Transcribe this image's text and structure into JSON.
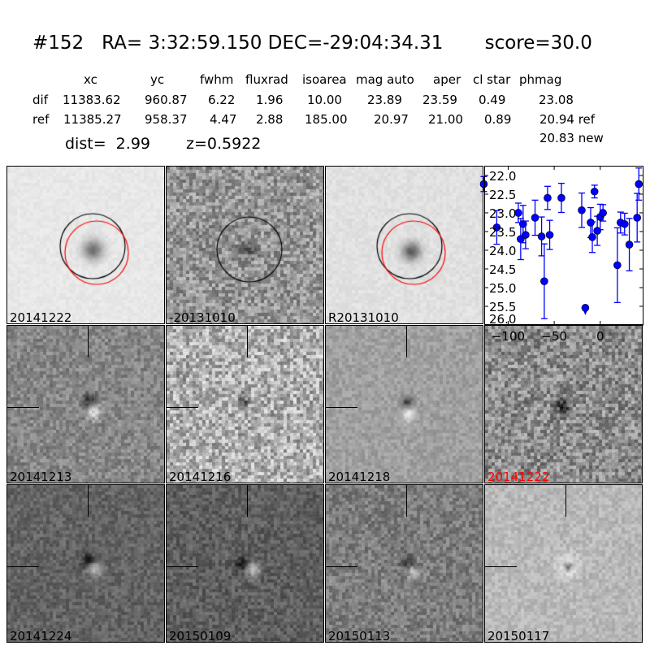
{
  "header": {
    "title": "#152   RA= 3:32:59.150 DEC=-29:04:34.31       score=30.0",
    "columns": [
      "xc",
      "yc",
      "fwhm",
      "fluxrad",
      "isoarea",
      "mag auto",
      "aper",
      "cl star",
      "phmag"
    ],
    "rows": [
      {
        "label": "dif",
        "values": [
          "11383.62",
          "960.87",
          "6.22",
          "1.96",
          "10.00",
          "23.89",
          "23.59",
          "0.49",
          "23.08"
        ]
      },
      {
        "label": "ref",
        "values": [
          "11385.27",
          "958.37",
          "4.47",
          "2.88",
          "185.00",
          "20.97",
          "21.00",
          "0.89",
          "20.94 ref"
        ]
      }
    ],
    "extra_phmag": "20.83 new",
    "dist": "dist=  2.99",
    "z": "z=0.5922"
  },
  "stamps": [
    {
      "label": "20141222",
      "label_color": "#000000"
    },
    {
      "label": "-20131010",
      "label_color": "#000000"
    },
    {
      "label": "R20131010",
      "label_color": "#000000"
    },
    {
      "label": "20141213",
      "label_color": "#000000"
    },
    {
      "label": "20141216",
      "label_color": "#000000"
    },
    {
      "label": "20141218",
      "label_color": "#000000"
    },
    {
      "label": "20141222",
      "label_color": "#ff0000"
    },
    {
      "label": "20141224",
      "label_color": "#000000"
    },
    {
      "label": "20150109",
      "label_color": "#000000"
    },
    {
      "label": "20150113",
      "label_color": "#000000"
    },
    {
      "label": "20150117",
      "label_color": "#000000"
    }
  ],
  "chart_data": {
    "type": "scatter",
    "title": "",
    "xlabel": "",
    "ylabel": "",
    "xlim": [
      -126,
      47
    ],
    "ylim": [
      26.0,
      21.74
    ],
    "y_inverted": true,
    "xticks": [
      -100,
      -50,
      0
    ],
    "xtick_labels": [
      "−100",
      "−50",
      "0"
    ],
    "yticks": [
      22.0,
      22.5,
      23.0,
      23.5,
      24.0,
      24.5,
      25.0,
      25.5,
      26.0
    ],
    "ytick_labels": [
      "22.0",
      "22.5",
      "23.0",
      "23.5",
      "24.0",
      "24.5",
      "25.0",
      "25.5",
      "26.0"
    ],
    "color": "#0000ff",
    "grid": false,
    "points": [
      {
        "x": -126.5,
        "y": 22.23,
        "err": 0.2
      },
      {
        "x": -112.4,
        "y": 23.39,
        "err": 0.45
      },
      {
        "x": -89.0,
        "y": 23.0,
        "err": 0.26
      },
      {
        "x": -86.4,
        "y": 23.7,
        "err": 0.55
      },
      {
        "x": -83.8,
        "y": 23.3,
        "err": 0.5
      },
      {
        "x": -81.1,
        "y": 23.59,
        "err": 0.37
      },
      {
        "x": -70.8,
        "y": 23.13,
        "err": 0.47
      },
      {
        "x": -63.7,
        "y": 23.63,
        "err": 0.52
      },
      {
        "x": -60.8,
        "y": 24.83,
        "err": 1.0
      },
      {
        "x": -57.2,
        "y": 22.6,
        "err": 0.31
      },
      {
        "x": -54.9,
        "y": 23.59,
        "err": 0.39
      },
      {
        "x": -42.2,
        "y": 22.6,
        "err": 0.39
      },
      {
        "x": -20.1,
        "y": 22.93,
        "err": 0.46
      },
      {
        "x": -16.2,
        "y": 25.54,
        "err": 0,
        "upper_limit": true
      },
      {
        "x": -10.4,
        "y": 23.26,
        "err": 0.4
      },
      {
        "x": -8.6,
        "y": 23.65,
        "err": 0.41
      },
      {
        "x": -6.2,
        "y": 22.43,
        "err": 0.17
      },
      {
        "x": -3.2,
        "y": 23.48,
        "err": 0.39
      },
      {
        "x": 0.0,
        "y": 23.11,
        "err": 0.34
      },
      {
        "x": 3.0,
        "y": 23.0,
        "err": 0.22
      },
      {
        "x": 18.6,
        "y": 24.4,
        "err": 1.0
      },
      {
        "x": 22.1,
        "y": 23.26,
        "err": 0.28
      },
      {
        "x": 26.5,
        "y": 23.3,
        "err": 0.29
      },
      {
        "x": 31.6,
        "y": 23.85,
        "err": 0.7
      },
      {
        "x": 40.1,
        "y": 23.13,
        "err": 0.65
      },
      {
        "x": 41.9,
        "y": 22.23,
        "err": 0.43
      }
    ]
  }
}
